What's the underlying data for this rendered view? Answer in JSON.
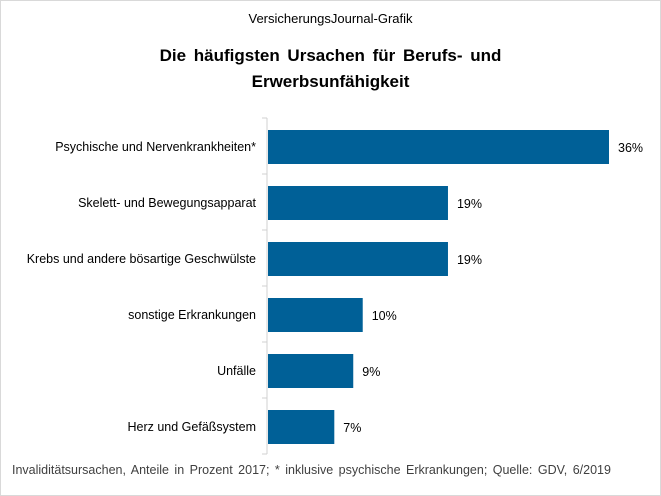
{
  "chart_data": {
    "type": "bar",
    "orientation": "horizontal",
    "source_label": "VersicherungsJournal-Grafik",
    "title": "Die häufigsten Ursachen für Berufs- und Erwerbsunfähigkeit",
    "title_lines": [
      "Die häufigsten Ursachen für Berufs- und",
      "Erwerbsunfähigkeit"
    ],
    "categories": [
      "Psychische und Nervenkrankheiten*",
      "Skelett- und Bewegungsapparat",
      "Krebs und andere bösartige Geschwülste",
      "sonstige Erkrankungen",
      "Unfälle",
      "Herz und Gefäßsystem"
    ],
    "values": [
      36,
      19,
      19,
      10,
      9,
      7
    ],
    "data_labels": [
      "36%",
      "19%",
      "19%",
      "10%",
      "9%",
      "7%"
    ],
    "unit": "%",
    "xlim": [
      0,
      36
    ],
    "grid": false,
    "legend": "none",
    "bar_color": "#006097",
    "footnote": "Invaliditätsursachen,  Anteile in Prozent 2017; * inklusive psychische Erkrankungen; Quelle: GDV, 6/2019"
  }
}
